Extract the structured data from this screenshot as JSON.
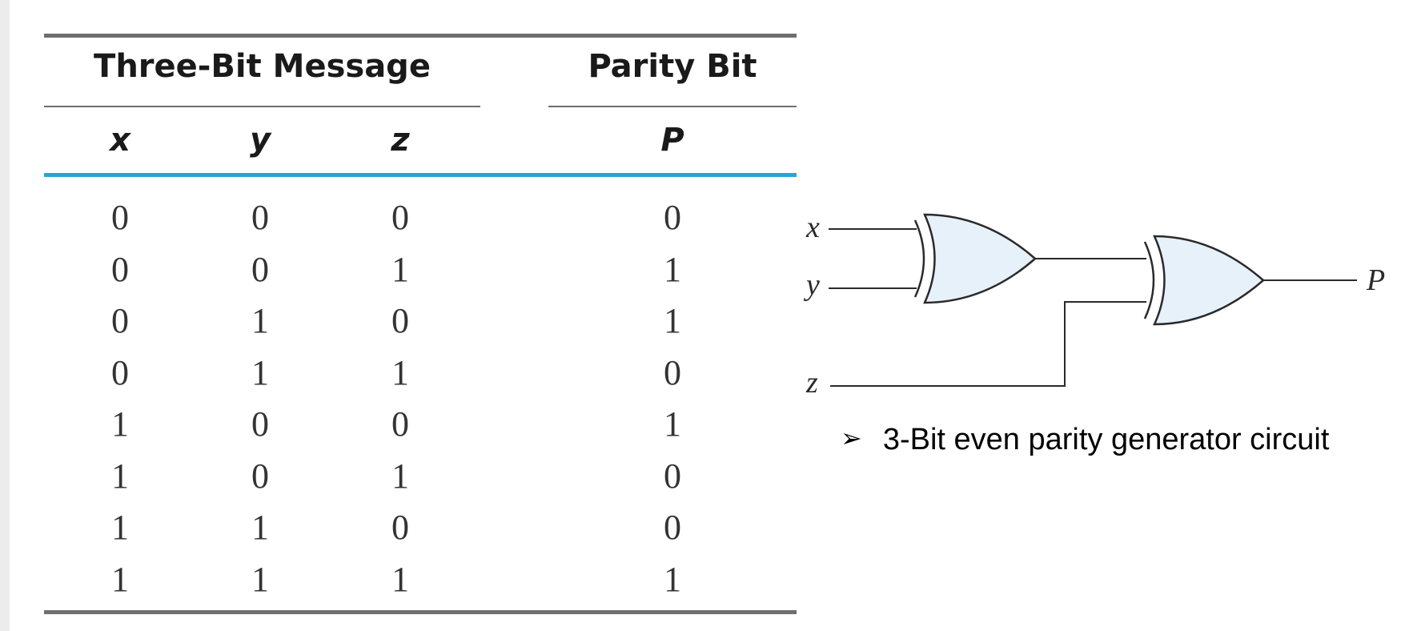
{
  "table": {
    "group_header": "Three-Bit Message",
    "parity_header": "Parity Bit",
    "columns": [
      "x",
      "y",
      "z",
      "P"
    ],
    "rows": [
      [
        "0",
        "0",
        "0",
        "0"
      ],
      [
        "0",
        "0",
        "1",
        "1"
      ],
      [
        "0",
        "1",
        "0",
        "1"
      ],
      [
        "0",
        "1",
        "1",
        "0"
      ],
      [
        "1",
        "0",
        "0",
        "1"
      ],
      [
        "1",
        "0",
        "1",
        "0"
      ],
      [
        "1",
        "1",
        "0",
        "0"
      ],
      [
        "1",
        "1",
        "1",
        "1"
      ]
    ]
  },
  "circuit": {
    "inputs": [
      "x",
      "y",
      "z"
    ],
    "output": "P",
    "gates": [
      "xor-gate",
      "xor-gate"
    ],
    "gate_fill": "#e6f1fa"
  },
  "caption": {
    "bullet": "➢",
    "text": "3-Bit even parity generator circuit"
  },
  "colors": {
    "rule": "#6e6e6e",
    "accent_rule": "#2aa3dc"
  }
}
